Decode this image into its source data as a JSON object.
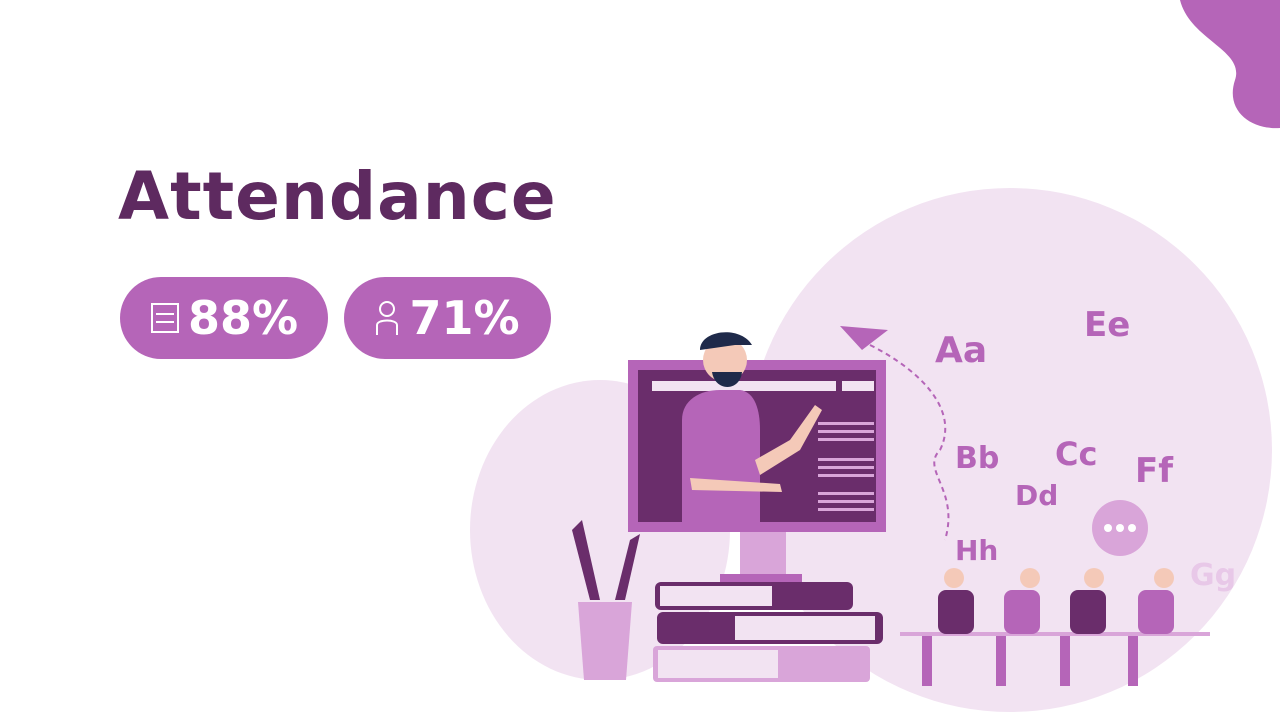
{
  "slide": {
    "title": "Attendance",
    "stats": [
      {
        "text": "88%"
      },
      {
        "text": "71%"
      }
    ],
    "illustration": {
      "letters": [
        "Aa",
        "Ee",
        "Bb",
        "Cc",
        "Ff",
        "Dd",
        "Hh",
        "Gg"
      ]
    }
  }
}
